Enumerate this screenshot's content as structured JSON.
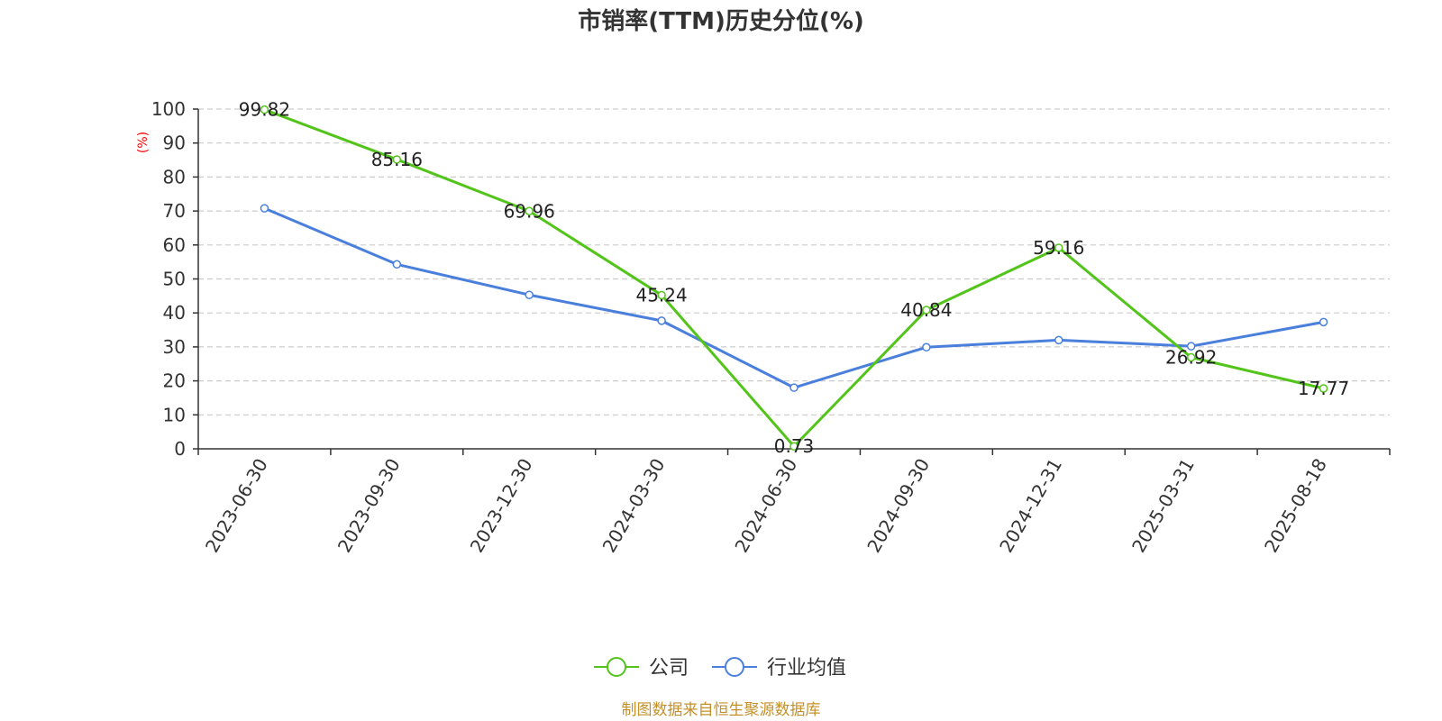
{
  "chart_data": {
    "type": "line",
    "title": "市销率(TTM)历史分位(%)",
    "ylabel": "(%)",
    "xlabel": "",
    "ylim": [
      0,
      100
    ],
    "yticks": [
      0,
      10,
      20,
      30,
      40,
      50,
      60,
      70,
      80,
      90,
      100
    ],
    "grid": true,
    "legend_position": "bottom",
    "categories": [
      "2023-06-30",
      "2023-09-30",
      "2023-12-30",
      "2024-03-30",
      "2024-06-30",
      "2024-09-30",
      "2024-12-31",
      "2025-03-31",
      "2025-08-18"
    ],
    "series": [
      {
        "name": "公司",
        "color": "#52c41a",
        "values": [
          99.82,
          85.16,
          69.96,
          45.24,
          0.73,
          40.84,
          59.16,
          26.92,
          17.77
        ],
        "labels": [
          "99.82",
          "85.16",
          "69.96",
          "45.24",
          "0.73",
          "40.84",
          "59.16",
          "26.92",
          "17.77"
        ]
      },
      {
        "name": "行业均值",
        "color": "#4a7fdc",
        "values": [
          70.8,
          54.3,
          45.3,
          37.7,
          18.0,
          29.9,
          32.0,
          30.2,
          37.3
        ]
      }
    ],
    "source": "制图数据来自恒生聚源数据库"
  }
}
